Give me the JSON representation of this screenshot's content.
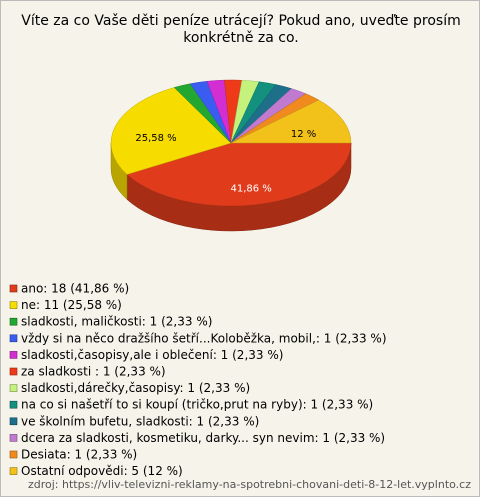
{
  "chart_data": {
    "type": "pie3d",
    "title": [
      "Víte za co Vaše děti peníze utrácejí? Pokud ano, uveďte prosím",
      "konkrétně za co."
    ],
    "categories": [
      "ano",
      "ne",
      "sladkosti, maličkosti",
      "vždy si na něco dražšího šetří...Koloběžka, mobil,",
      "sladkosti,časopisy,ale i oblečení",
      "za sladkosti",
      "sladkosti,dárečky,časopisy",
      "na co si našetří to si koupí (tričko,prut na ryby)",
      "ve školním bufetu, sladkosti",
      "dcera za sladkosti, kosmetiku, darky... syn nevim",
      "Desiata",
      "Ostatní odpovědi"
    ],
    "legend_labels": [
      "ano: 18 (41,86 %)",
      "ne: 11 (25,58 %)",
      "sladkosti, maličkosti: 1 (2,33 %)",
      "vždy si na něco dražšího šetří...Koloběžka, mobil,: 1 (2,33 %)",
      "sladkosti,časopisy,ale i oblečení: 1 (2,33 %)",
      "za sladkosti : 1 (2,33 %)",
      "sladkosti,dárečky,časopisy: 1 (2,33 %)",
      "na co si našetří to si koupí (tričko,prut na ryby): 1 (2,33 %)",
      "ve školním bufetu, sladkosti: 1 (2,33 %)",
      "dcera za sladkosti, kosmetiku, darky... syn nevim: 1 (2,33 %)",
      "Desiata: 1 (2,33 %)",
      "Ostatní odpovědi: 5 (12 %)"
    ],
    "values": [
      41.86,
      25.58,
      2.33,
      2.33,
      2.33,
      2.33,
      2.33,
      2.33,
      2.33,
      2.33,
      2.33,
      12
    ],
    "value_labels": [
      "41,86 %",
      "25,58 %",
      null,
      null,
      null,
      null,
      null,
      null,
      null,
      null,
      null,
      "12 %"
    ],
    "colors": [
      "#e03c1c",
      "#f7dc00",
      "#22a830",
      "#3a5cf0",
      "#d22ed2",
      "#ee3a18",
      "#c4f27c",
      "#13907e",
      "#1e6f8a",
      "#c07ad0",
      "#f08a1e",
      "#f2c21a"
    ],
    "source": "zdroj: https://vliv-televizni-reklamy-na-spotrebni-chovani-deti-8-12-let.vyplnto.cz"
  }
}
